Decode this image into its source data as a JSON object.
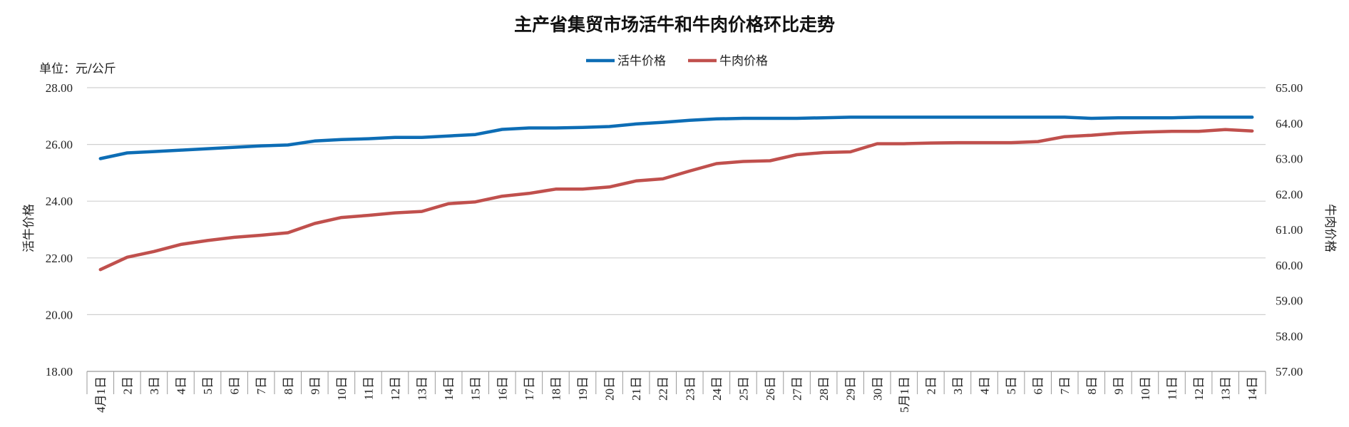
{
  "chart_data": {
    "type": "line",
    "title": "主产省集贸市场活牛和牛肉价格环比走势",
    "unit_label": "单位：元/公斤",
    "ylabel_left": "活牛价格",
    "ylabel_right": "牛肉价格",
    "ylim_left": [
      18,
      28
    ],
    "ylim_right": [
      57,
      65
    ],
    "yticks_left": [
      "18.00",
      "20.00",
      "22.00",
      "24.00",
      "26.00",
      "28.00"
    ],
    "yticks_right": [
      "57.00",
      "58.00",
      "59.00",
      "60.00",
      "61.00",
      "62.00",
      "63.00",
      "64.00",
      "65.00"
    ],
    "grid": true,
    "legend_position": "top-center",
    "categories": [
      "4月1日",
      "2日",
      "3日",
      "4日",
      "5日",
      "6日",
      "7日",
      "8日",
      "9日",
      "10日",
      "11日",
      "12日",
      "13日",
      "14日",
      "15日",
      "16日",
      "17日",
      "18日",
      "19日",
      "20日",
      "21日",
      "22日",
      "23日",
      "24日",
      "25日",
      "26日",
      "27日",
      "28日",
      "29日",
      "30日",
      "5月1日",
      "2日",
      "3日",
      "4日",
      "5日",
      "6日",
      "7日",
      "8日",
      "9日",
      "10日",
      "11日",
      "12日",
      "13日",
      "14日"
    ],
    "series": [
      {
        "name": "活牛价格",
        "axis": "left",
        "color": "#0d6db5",
        "values": [
          25.5,
          25.7,
          25.75,
          25.8,
          25.85,
          25.9,
          25.95,
          25.98,
          26.12,
          26.17,
          26.2,
          26.25,
          26.25,
          26.3,
          26.35,
          26.53,
          26.58,
          26.58,
          26.6,
          26.63,
          26.72,
          26.78,
          26.85,
          26.9,
          26.92,
          26.92,
          26.92,
          26.94,
          26.96,
          26.96,
          26.96,
          26.96,
          26.96,
          26.96,
          26.96,
          26.96,
          26.96,
          26.92,
          26.94,
          26.94,
          26.94,
          26.96,
          26.96,
          26.96
        ]
      },
      {
        "name": "牛肉价格",
        "axis": "right",
        "color": "#c0504d",
        "values": [
          59.87,
          60.22,
          60.38,
          60.58,
          60.69,
          60.78,
          60.84,
          60.91,
          61.17,
          61.34,
          61.4,
          61.47,
          61.51,
          61.73,
          61.78,
          61.94,
          62.02,
          62.14,
          62.14,
          62.2,
          62.37,
          62.43,
          62.65,
          62.86,
          62.92,
          62.94,
          63.11,
          63.17,
          63.19,
          63.42,
          63.42,
          63.44,
          63.45,
          63.45,
          63.45,
          63.48,
          63.62,
          63.66,
          63.72,
          63.75,
          63.77,
          63.77,
          63.82,
          63.78
        ]
      }
    ]
  }
}
